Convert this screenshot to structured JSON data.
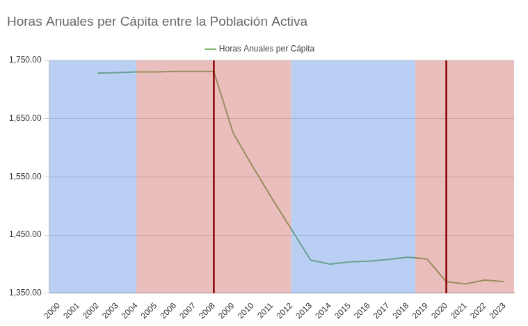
{
  "chart_data": {
    "type": "line",
    "title": "Horas Anuales per Cápita entre la Población Activa",
    "categories": [
      "2000",
      "2001",
      "2002",
      "2003",
      "2004",
      "2005",
      "2006",
      "2007",
      "2008",
      "2009",
      "2010",
      "2011",
      "2012",
      "2013",
      "2014",
      "2015",
      "2016",
      "2017",
      "2018",
      "2019",
      "2020",
      "2021",
      "2022",
      "2023"
    ],
    "series": [
      {
        "name": "Horas Anuales per Cápita",
        "color": "#6aa84f",
        "values": [
          null,
          null,
          1728,
          1729,
          1730,
          1730,
          1731,
          1731,
          1731,
          1625,
          1568,
          1513,
          1460,
          1407,
          1400,
          1404,
          1405,
          1408,
          1412,
          1409,
          1370,
          1366,
          1373,
          1370
        ]
      }
    ],
    "ylim": [
      1350,
      1750
    ],
    "yticks": [
      {
        "value": 1350,
        "label": "1,350.00"
      },
      {
        "value": 1450,
        "label": "1,450.00"
      },
      {
        "value": 1550,
        "label": "1,550.00"
      },
      {
        "value": 1650,
        "label": "1,650.00"
      },
      {
        "value": 1750,
        "label": "1,750.00"
      }
    ],
    "grid": true,
    "legend": "top",
    "shaded_periods": [
      {
        "from": 1999.5,
        "to": 2004,
        "color": "rgba(100,150,230,0.45)"
      },
      {
        "from": 2004,
        "to": 2012,
        "color": "rgba(210,110,110,0.45)"
      },
      {
        "from": 2012,
        "to": 2018.4,
        "color": "rgba(100,150,230,0.45)"
      },
      {
        "from": 2018.4,
        "to": 2023.5,
        "color": "rgba(210,110,110,0.45)"
      }
    ],
    "vertical_lines": [
      {
        "x": 2008,
        "color": "#8b0000"
      },
      {
        "x": 2020,
        "color": "#8b0000"
      }
    ]
  }
}
